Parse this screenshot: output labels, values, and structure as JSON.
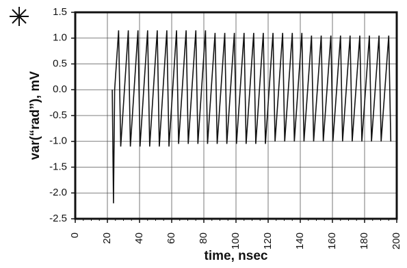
{
  "chart_data": {
    "type": "line",
    "xlabel": "time, nsec",
    "ylabel": "var(“rad”), mV",
    "xlim": [
      0,
      200
    ],
    "xticks": [
      0,
      20,
      40,
      60,
      80,
      100,
      120,
      140,
      160,
      180,
      200
    ],
    "ylim": [
      -2.5,
      1.5
    ],
    "yticks": [
      1.5,
      {
        "value": 1,
        "label": "1.0"
      },
      0.5,
      {
        "value": 0,
        "label": "0.0"
      },
      -0.5,
      {
        "value": -1,
        "label": "-1.0"
      },
      -1.5,
      {
        "value": -2,
        "label": "-2.0"
      },
      -2.5
    ],
    "grid": true,
    "series": [
      {
        "color": "#111111",
        "x": [
          23,
          23.8,
          24.5,
          27,
          28.3,
          33,
          34.3,
          39,
          40.3,
          45,
          46.3,
          51,
          52.3,
          57,
          58.3,
          63,
          64.3,
          69,
          70.3,
          75,
          76.3,
          81,
          82.3,
          87,
          88.3,
          93,
          94.3,
          99,
          100.3,
          105,
          106.3,
          111,
          112.3,
          117,
          118.3,
          123,
          124.3,
          129,
          130.3,
          135,
          136.3,
          141,
          142.3,
          147,
          148.3,
          153,
          154.3,
          159,
          160.3,
          165,
          166.3,
          171,
          172.3,
          177,
          178.3,
          183,
          184.3,
          189,
          190.3,
          195,
          196.3
        ],
        "values": [
          0,
          -2.2,
          0,
          1.15,
          -1.1,
          1.15,
          -1.1,
          1.15,
          -1.1,
          1.15,
          -1.1,
          1.15,
          -1.1,
          1.15,
          -1.1,
          1.15,
          -1.05,
          1.15,
          -1.05,
          1.15,
          -1.05,
          1.15,
          -1.05,
          1.1,
          -1.05,
          1.1,
          -1.05,
          1.1,
          -1.05,
          1.1,
          -1.05,
          1.1,
          -1.05,
          1.1,
          -1.05,
          1.1,
          -1.0,
          1.1,
          -1.0,
          1.1,
          -1.0,
          1.1,
          -1.0,
          1.05,
          -1.0,
          1.05,
          -1.0,
          1.05,
          -1.0,
          1.05,
          -1.0,
          1.05,
          -1.0,
          1.05,
          -1.0,
          1.05,
          -1.0,
          1.05,
          -1.0,
          1.05,
          -1.0
        ]
      }
    ]
  }
}
